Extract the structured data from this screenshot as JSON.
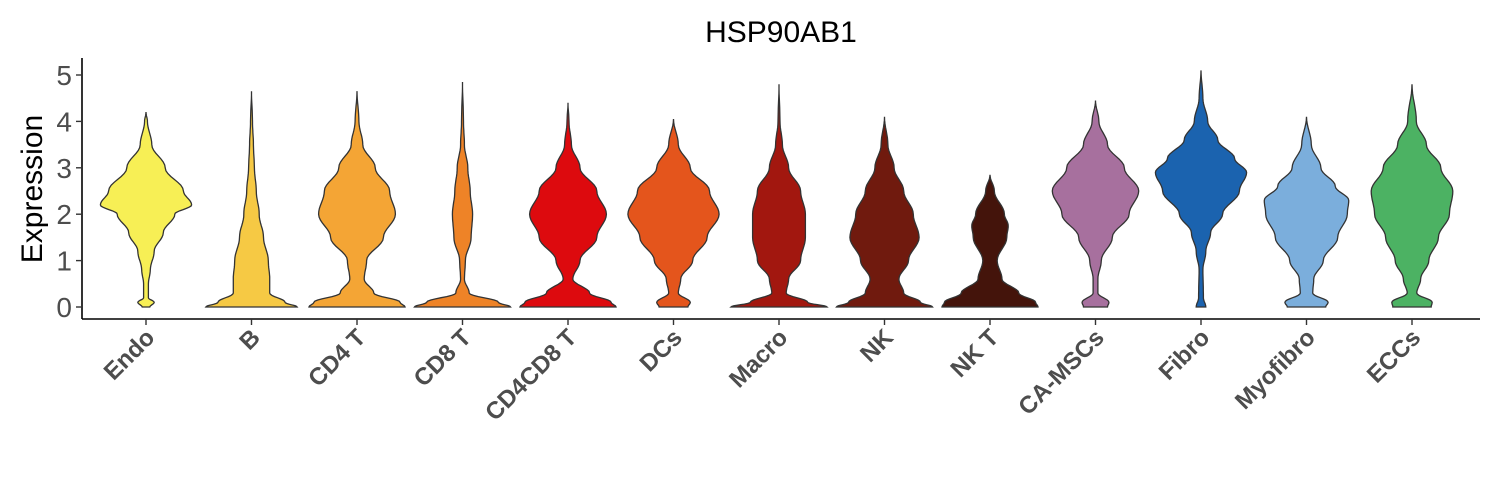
{
  "chart_data": {
    "type": "violin",
    "title": "HSP90AB1",
    "ylabel": "Expression",
    "xlabel": "",
    "ylim": [
      -0.25,
      5.35
    ],
    "yticks": [
      0,
      1,
      2,
      3,
      4,
      5
    ],
    "grid": false,
    "legend": "none",
    "categories": [
      "Endo",
      "B",
      "CD4 T",
      "CD8 T",
      "CD4CD8 T",
      "DCs",
      "Macro",
      "NK",
      "NK T",
      "CA-MSCs",
      "Fibro",
      "Myofibro",
      "ECCs"
    ],
    "colors": [
      "#F7EF55",
      "#F6C944",
      "#F4A535",
      "#EE8327",
      "#DD0A0E",
      "#E4551C",
      "#A2170F",
      "#701A0E",
      "#44140B",
      "#A7709E",
      "#1B63AF",
      "#7BAEDC",
      "#4CB263"
    ],
    "series": [
      {
        "category": "Endo",
        "max": 4.2,
        "profile": [
          [
            0,
            0.08
          ],
          [
            0.1,
            0.17
          ],
          [
            0.2,
            0.05
          ],
          [
            0.5,
            0.05
          ],
          [
            0.8,
            0.09
          ],
          [
            1.2,
            0.17
          ],
          [
            1.6,
            0.36
          ],
          [
            2.0,
            0.6
          ],
          [
            2.2,
            0.95
          ],
          [
            2.5,
            0.78
          ],
          [
            3.0,
            0.4
          ],
          [
            3.5,
            0.12
          ],
          [
            4.0,
            0.03
          ],
          [
            4.2,
            0.0
          ]
        ]
      },
      {
        "category": "B",
        "max": 4.65,
        "profile": [
          [
            0,
            0.95
          ],
          [
            0.1,
            0.7
          ],
          [
            0.3,
            0.38
          ],
          [
            0.6,
            0.38
          ],
          [
            1.0,
            0.35
          ],
          [
            1.5,
            0.25
          ],
          [
            2.0,
            0.16
          ],
          [
            2.5,
            0.1
          ],
          [
            3.0,
            0.06
          ],
          [
            3.5,
            0.04
          ],
          [
            4.0,
            0.02
          ],
          [
            4.65,
            0.0
          ]
        ]
      },
      {
        "category": "CD4 T",
        "max": 4.65,
        "profile": [
          [
            0,
            1.0
          ],
          [
            0.1,
            0.9
          ],
          [
            0.3,
            0.35
          ],
          [
            0.6,
            0.15
          ],
          [
            1.0,
            0.2
          ],
          [
            1.5,
            0.55
          ],
          [
            2.0,
            0.8
          ],
          [
            2.5,
            0.68
          ],
          [
            3.0,
            0.38
          ],
          [
            3.5,
            0.12
          ],
          [
            4.0,
            0.04
          ],
          [
            4.65,
            0.0
          ]
        ]
      },
      {
        "category": "CD8 T",
        "max": 4.85,
        "profile": [
          [
            0,
            1.0
          ],
          [
            0.1,
            0.75
          ],
          [
            0.3,
            0.14
          ],
          [
            0.6,
            0.04
          ],
          [
            1.0,
            0.06
          ],
          [
            1.5,
            0.18
          ],
          [
            2.0,
            0.21
          ],
          [
            2.5,
            0.16
          ],
          [
            3.0,
            0.11
          ],
          [
            3.5,
            0.04
          ],
          [
            4.0,
            0.02
          ],
          [
            4.85,
            0.0
          ]
        ]
      },
      {
        "category": "CD4CD8 T",
        "max": 4.4,
        "profile": [
          [
            0,
            1.0
          ],
          [
            0.1,
            0.9
          ],
          [
            0.3,
            0.45
          ],
          [
            0.6,
            0.1
          ],
          [
            1.0,
            0.25
          ],
          [
            1.5,
            0.6
          ],
          [
            2.0,
            0.8
          ],
          [
            2.5,
            0.6
          ],
          [
            3.0,
            0.25
          ],
          [
            3.5,
            0.07
          ],
          [
            4.0,
            0.02
          ],
          [
            4.4,
            0.0
          ]
        ]
      },
      {
        "category": "DCs",
        "max": 4.05,
        "profile": [
          [
            0,
            0.3
          ],
          [
            0.1,
            0.35
          ],
          [
            0.3,
            0.1
          ],
          [
            0.6,
            0.15
          ],
          [
            1.0,
            0.4
          ],
          [
            1.5,
            0.7
          ],
          [
            2.0,
            0.95
          ],
          [
            2.5,
            0.75
          ],
          [
            3.0,
            0.35
          ],
          [
            3.5,
            0.1
          ],
          [
            4.05,
            0.0
          ]
        ]
      },
      {
        "category": "Macro",
        "max": 4.8,
        "profile": [
          [
            0,
            1.0
          ],
          [
            0.1,
            0.6
          ],
          [
            0.3,
            0.15
          ],
          [
            0.6,
            0.2
          ],
          [
            1.0,
            0.45
          ],
          [
            1.5,
            0.55
          ],
          [
            2.0,
            0.55
          ],
          [
            2.5,
            0.45
          ],
          [
            3.0,
            0.2
          ],
          [
            3.5,
            0.07
          ],
          [
            4.0,
            0.02
          ],
          [
            4.8,
            0.0
          ]
        ]
      },
      {
        "category": "NK",
        "max": 4.1,
        "profile": [
          [
            0,
            1.0
          ],
          [
            0.1,
            0.75
          ],
          [
            0.3,
            0.4
          ],
          [
            0.6,
            0.3
          ],
          [
            1.0,
            0.5
          ],
          [
            1.5,
            0.72
          ],
          [
            2.0,
            0.6
          ],
          [
            2.5,
            0.4
          ],
          [
            3.0,
            0.2
          ],
          [
            3.5,
            0.07
          ],
          [
            4.1,
            0.0
          ]
        ]
      },
      {
        "category": "NK T",
        "max": 2.85,
        "profile": [
          [
            0,
            1.0
          ],
          [
            0.1,
            0.95
          ],
          [
            0.3,
            0.6
          ],
          [
            0.6,
            0.25
          ],
          [
            1.0,
            0.15
          ],
          [
            1.5,
            0.35
          ],
          [
            1.75,
            0.38
          ],
          [
            2.0,
            0.3
          ],
          [
            2.5,
            0.09
          ],
          [
            2.85,
            0.0
          ]
        ]
      },
      {
        "category": "CA-MSCs",
        "max": 4.45,
        "profile": [
          [
            0,
            0.25
          ],
          [
            0.1,
            0.28
          ],
          [
            0.3,
            0.05
          ],
          [
            0.6,
            0.05
          ],
          [
            1.0,
            0.12
          ],
          [
            1.5,
            0.35
          ],
          [
            2.0,
            0.7
          ],
          [
            2.5,
            0.9
          ],
          [
            3.0,
            0.6
          ],
          [
            3.5,
            0.25
          ],
          [
            4.0,
            0.07
          ],
          [
            4.45,
            0.0
          ]
        ]
      },
      {
        "category": "Fibro",
        "max": 5.1,
        "profile": [
          [
            0,
            0.1
          ],
          [
            0.2,
            0.05
          ],
          [
            0.8,
            0.04
          ],
          [
            1.2,
            0.1
          ],
          [
            1.6,
            0.2
          ],
          [
            2.0,
            0.45
          ],
          [
            2.5,
            0.8
          ],
          [
            2.9,
            0.95
          ],
          [
            3.2,
            0.7
          ],
          [
            3.6,
            0.35
          ],
          [
            4.0,
            0.14
          ],
          [
            4.5,
            0.04
          ],
          [
            5.1,
            0.0
          ]
        ]
      },
      {
        "category": "Myofibro",
        "max": 4.1,
        "profile": [
          [
            0,
            0.4
          ],
          [
            0.1,
            0.45
          ],
          [
            0.3,
            0.13
          ],
          [
            0.6,
            0.15
          ],
          [
            1.0,
            0.35
          ],
          [
            1.5,
            0.65
          ],
          [
            2.0,
            0.85
          ],
          [
            2.3,
            0.88
          ],
          [
            2.6,
            0.6
          ],
          [
            3.0,
            0.3
          ],
          [
            3.5,
            0.1
          ],
          [
            4.1,
            0.0
          ]
        ]
      },
      {
        "category": "ECCs",
        "max": 4.8,
        "profile": [
          [
            0,
            0.4
          ],
          [
            0.1,
            0.42
          ],
          [
            0.3,
            0.1
          ],
          [
            0.6,
            0.18
          ],
          [
            1.0,
            0.35
          ],
          [
            1.5,
            0.55
          ],
          [
            2.0,
            0.78
          ],
          [
            2.5,
            0.85
          ],
          [
            3.0,
            0.6
          ],
          [
            3.5,
            0.3
          ],
          [
            4.0,
            0.09
          ],
          [
            4.8,
            0.0
          ]
        ]
      }
    ]
  }
}
